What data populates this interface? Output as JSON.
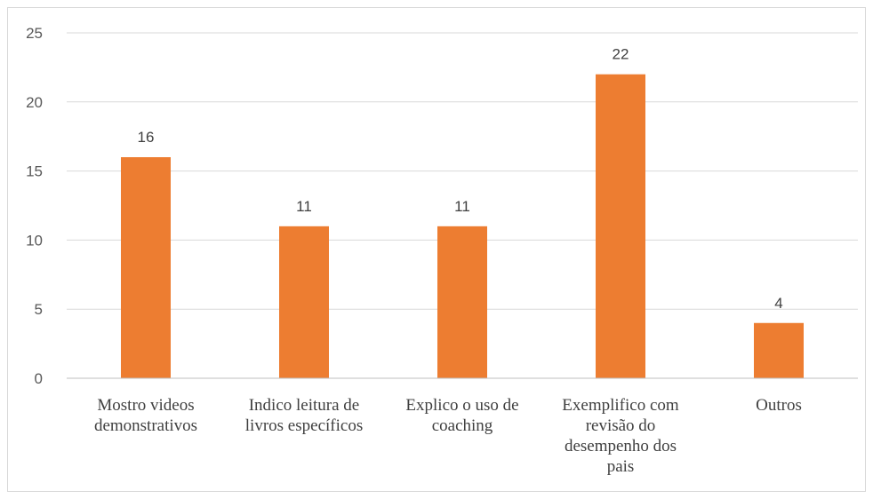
{
  "chart_data": {
    "type": "bar",
    "categories": [
      [
        "Mostro videos",
        "demonstrativos"
      ],
      [
        "Indico leitura de",
        "livros específicos"
      ],
      [
        "Explico o uso de",
        "coaching"
      ],
      [
        "Exemplifico com",
        "revisão do",
        "desempenho dos",
        "pais"
      ],
      [
        "Outros"
      ]
    ],
    "values": [
      16,
      11,
      11,
      22,
      4
    ],
    "data_labels": [
      "16",
      "11",
      "11",
      "22",
      "4"
    ],
    "y_ticks": [
      0,
      5,
      10,
      15,
      20,
      25
    ],
    "ylim": [
      0,
      25
    ],
    "grid": true,
    "bar_color": "#ED7D31",
    "grid_color": "#d9d9d9"
  }
}
